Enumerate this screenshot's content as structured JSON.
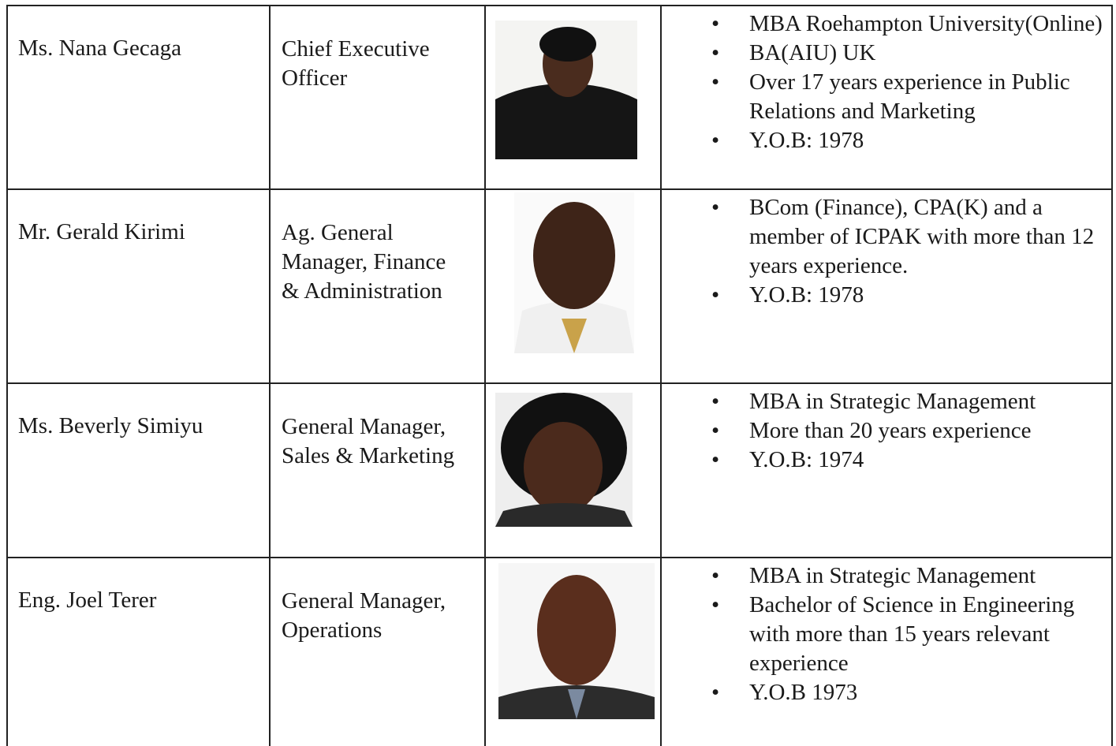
{
  "table": {
    "rows": [
      {
        "name": "Ms. Nana Gecaga",
        "title_lines": [
          "Chief Executive",
          "Officer"
        ],
        "details": [
          "MBA Roehampton University(Online)",
          "BA(AIU) UK",
          "Over 17 years experience in Public Relations and Marketing",
          "Y.O.B: 1978"
        ]
      },
      {
        "name": "Mr. Gerald Kirimi",
        "title_lines": [
          "Ag. General",
          "Manager, Finance",
          "& Administration"
        ],
        "details": [
          "BCom (Finance), CPA(K) and a member of ICPAK with more than 12 years experience.",
          "Y.O.B: 1978"
        ]
      },
      {
        "name": "Ms. Beverly Simiyu",
        "title_lines": [
          "General Manager,",
          "Sales & Marketing"
        ],
        "details": [
          "MBA in Strategic Management",
          "More than 20 years experience",
          "Y.O.B: 1974"
        ]
      },
      {
        "name": "Eng. Joel Terer",
        "title_lines": [
          "General Manager,",
          "Operations"
        ],
        "details": [
          "MBA in Strategic Management",
          "Bachelor of Science in Engineering with more than 15 years relevant experience",
          "Y.O.B 1973"
        ]
      }
    ]
  }
}
